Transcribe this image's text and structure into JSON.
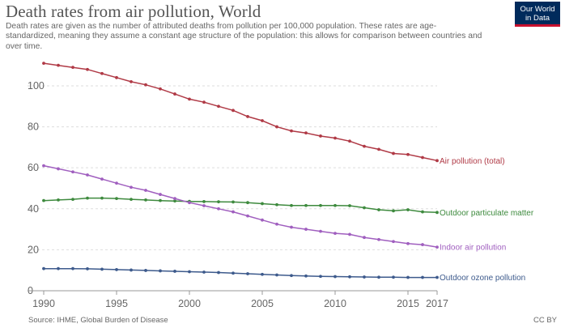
{
  "header": {
    "title": "Death rates from air pollution, World",
    "subtitle": "Death rates are given as the number of attributed deaths from pollution per 100,000 population. These rates are age-standardized, meaning they assume a constant age structure of the population: this allows for comparison between countries and over time.",
    "logo_line1": "Our World",
    "logo_line2": "in Data"
  },
  "footer": {
    "source": "Source: IHME, Global Burden of Disease",
    "license": "CC BY"
  },
  "chart_data": {
    "type": "line",
    "title": "Death rates from air pollution, World",
    "xlabel": "",
    "ylabel": "",
    "x": [
      1990,
      1991,
      1992,
      1993,
      1994,
      1995,
      1996,
      1997,
      1998,
      1999,
      2000,
      2001,
      2002,
      2003,
      2004,
      2005,
      2006,
      2007,
      2008,
      2009,
      2010,
      2011,
      2012,
      2013,
      2014,
      2015,
      2016,
      2017
    ],
    "xlim": [
      1990,
      2017
    ],
    "ylim": [
      0,
      115
    ],
    "x_ticks": [
      "1990",
      "1995",
      "2000",
      "2005",
      "2010",
      "2015",
      "2017"
    ],
    "y_ticks": [
      "0",
      "20",
      "40",
      "60",
      "80",
      "100"
    ],
    "grid": "horizontal dashed",
    "series": [
      {
        "name": "Air pollution (total)",
        "color": "#b03a46",
        "values": [
          111,
          110,
          109,
          108,
          106,
          104,
          102,
          100.5,
          98.5,
          96,
          93.5,
          92,
          90,
          88,
          85,
          83,
          80,
          78,
          77,
          75.5,
          74.5,
          73,
          70.5,
          69,
          67,
          66.5,
          65,
          63.5
        ]
      },
      {
        "name": "Outdoor particulate matter",
        "color": "#3e8a3e",
        "values": [
          44,
          44.3,
          44.6,
          45.2,
          45.2,
          45,
          44.6,
          44.3,
          44,
          43.8,
          43.6,
          43.5,
          43.4,
          43.3,
          43,
          42.5,
          42,
          41.6,
          41.6,
          41.6,
          41.6,
          41.5,
          40.5,
          39.5,
          39,
          39.5,
          38.5,
          38.2
        ]
      },
      {
        "name": "Indoor air pollution",
        "color": "#a05fbf",
        "values": [
          61,
          59.5,
          58,
          56.5,
          54.5,
          52.5,
          50.5,
          49,
          47,
          45,
          43,
          41.5,
          40,
          38.5,
          36.5,
          34.5,
          32.5,
          31,
          30,
          29,
          28,
          27.5,
          26,
          25,
          24,
          23,
          22.5,
          21.3
        ]
      },
      {
        "name": "Outdoor ozone pollution",
        "color": "#3d5a8c",
        "values": [
          10.8,
          10.8,
          10.8,
          10.7,
          10.5,
          10.3,
          10.1,
          9.9,
          9.7,
          9.5,
          9.3,
          9.1,
          8.9,
          8.6,
          8.3,
          8,
          7.7,
          7.4,
          7.2,
          7,
          6.9,
          6.8,
          6.7,
          6.6,
          6.6,
          6.5,
          6.5,
          6.5
        ]
      }
    ]
  }
}
